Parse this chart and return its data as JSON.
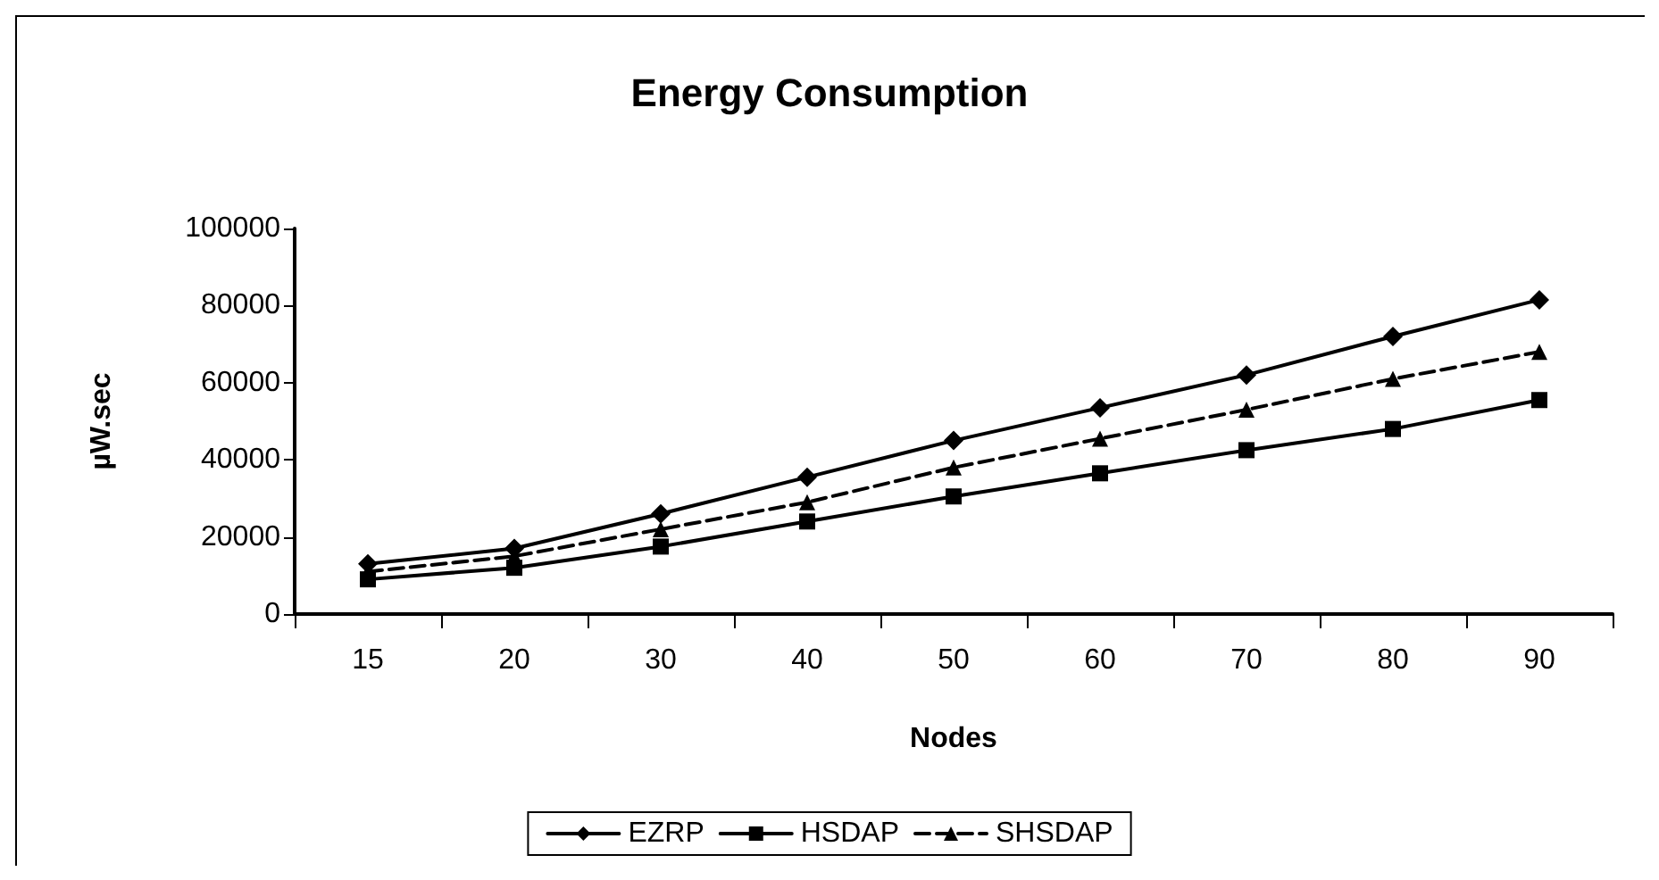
{
  "chart_data": {
    "type": "line",
    "title": "Energy Consumption",
    "xlabel": "Nodes",
    "ylabel": "µW.sec",
    "categories": [
      "15",
      "20",
      "30",
      "40",
      "50",
      "60",
      "70",
      "80",
      "90"
    ],
    "series": [
      {
        "name": "EZRP",
        "color": "#000000",
        "marker": "diamond",
        "line_style": "solid",
        "values": [
          13000,
          17000,
          26000,
          35500,
          45000,
          53500,
          62000,
          72000,
          81500
        ]
      },
      {
        "name": "HSDAP",
        "color": "#000000",
        "marker": "square",
        "line_style": "solid",
        "values": [
          9000,
          12000,
          17500,
          24000,
          30500,
          36500,
          42500,
          48000,
          55500
        ]
      },
      {
        "name": "SHSDAP",
        "color": "#000000",
        "marker": "triangle",
        "line_style": "dashed",
        "values": [
          11000,
          15000,
          22000,
          29000,
          38000,
          45500,
          53000,
          61000,
          68000
        ]
      }
    ],
    "ylim": [
      0,
      100000
    ],
    "yticks": [
      0,
      20000,
      40000,
      60000,
      80000,
      100000
    ],
    "grid": false,
    "legend": "bottom"
  }
}
